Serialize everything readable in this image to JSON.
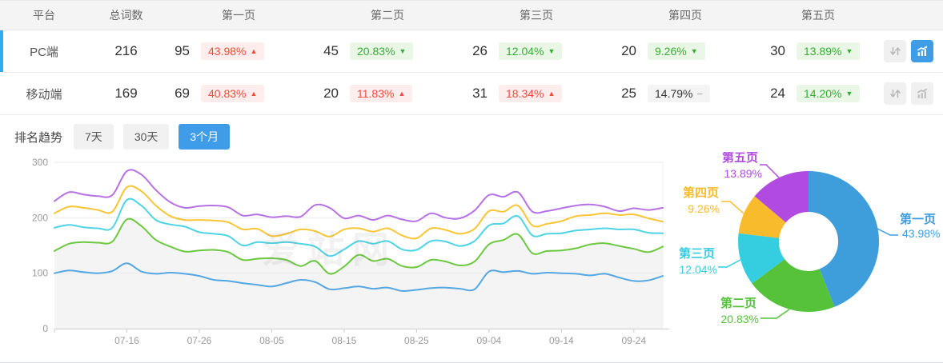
{
  "table": {
    "headers": [
      "平台",
      "总词数",
      "第一页",
      "第二页",
      "第三页",
      "第四页",
      "第五页"
    ],
    "rows": [
      {
        "platform": "PC端",
        "total": "216",
        "active": true,
        "pages": [
          {
            "count": "95",
            "pct": "43.98%",
            "dir": "up"
          },
          {
            "count": "45",
            "pct": "20.83%",
            "dir": "down"
          },
          {
            "count": "26",
            "pct": "12.04%",
            "dir": "down"
          },
          {
            "count": "20",
            "pct": "9.26%",
            "dir": "down"
          },
          {
            "count": "30",
            "pct": "13.89%",
            "dir": "down"
          }
        ],
        "trend_icon_active": true
      },
      {
        "platform": "移动端",
        "total": "169",
        "active": false,
        "pages": [
          {
            "count": "69",
            "pct": "40.83%",
            "dir": "up"
          },
          {
            "count": "20",
            "pct": "11.83%",
            "dir": "up"
          },
          {
            "count": "31",
            "pct": "18.34%",
            "dir": "up"
          },
          {
            "count": "25",
            "pct": "14.79%",
            "dir": "flat"
          },
          {
            "count": "24",
            "pct": "14.20%",
            "dir": "down"
          }
        ],
        "trend_icon_active": false
      }
    ]
  },
  "trend": {
    "label": "排名趋势",
    "tabs": [
      {
        "label": "7天",
        "active": false
      },
      {
        "label": "30天",
        "active": false
      },
      {
        "label": "3个月",
        "active": true
      }
    ]
  },
  "watermark": "爱站网",
  "colors": {
    "accent_blue": "#3e9de6",
    "row_indicator": "#33aaf0",
    "badge_up_text": "#f0483b",
    "badge_down_text": "#34ad34",
    "axis_text": "#999999"
  },
  "chart_data": [
    {
      "type": "line",
      "title": "排名趋势 (3个月)",
      "ylabel": "",
      "xlabel": "",
      "ylim": [
        0,
        300
      ],
      "y_ticks": [
        0,
        100,
        200,
        300
      ],
      "grid": true,
      "legend_position": "none",
      "x_tick_labels": [
        "07-16",
        "07-26",
        "08-05",
        "08-15",
        "08-25",
        "09-04",
        "09-14",
        "09-24"
      ],
      "x_tick_indices": [
        5,
        10,
        15,
        20,
        25,
        30,
        35,
        40
      ],
      "n_points": 43,
      "area_fill_series": "第二页",
      "series": [
        {
          "name": "第一页",
          "color": "#54a7e2",
          "values": [
            100,
            105,
            102,
            100,
            104,
            118,
            103,
            99,
            101,
            99,
            95,
            88,
            86,
            82,
            79,
            76,
            82,
            88,
            84,
            71,
            73,
            76,
            72,
            74,
            68,
            70,
            73,
            74,
            72,
            71,
            103,
            102,
            104,
            99,
            101,
            100,
            99,
            96,
            99,
            92,
            86,
            87,
            95
          ]
        },
        {
          "name": "第二页",
          "color": "#6bc83f",
          "values": [
            140,
            153,
            156,
            155,
            157,
            197,
            185,
            160,
            148,
            139,
            141,
            142,
            138,
            124,
            126,
            127,
            124,
            113,
            122,
            99,
            112,
            133,
            122,
            126,
            113,
            111,
            124,
            121,
            114,
            121,
            152,
            160,
            170,
            136,
            140,
            141,
            145,
            152,
            154,
            149,
            144,
            138,
            148
          ]
        },
        {
          "name": "第三页",
          "color": "#4ed4e4",
          "values": [
            182,
            187,
            183,
            181,
            182,
            232,
            222,
            196,
            188,
            184,
            174,
            171,
            167,
            150,
            156,
            154,
            156,
            153,
            148,
            131,
            143,
            158,
            153,
            158,
            143,
            142,
            158,
            157,
            149,
            158,
            186,
            190,
            203,
            168,
            171,
            172,
            177,
            179,
            181,
            179,
            179,
            173,
            172
          ]
        },
        {
          "name": "第四页",
          "color": "#f9c535",
          "values": [
            208,
            220,
            218,
            214,
            211,
            255,
            248,
            222,
            203,
            196,
            196,
            195,
            192,
            179,
            180,
            167,
            171,
            179,
            176,
            166,
            179,
            181,
            175,
            181,
            168,
            163,
            181,
            178,
            171,
            180,
            212,
            211,
            222,
            186,
            189,
            194,
            203,
            205,
            208,
            205,
            206,
            199,
            193
          ]
        },
        {
          "name": "第五页",
          "color": "#b671e4",
          "values": [
            230,
            246,
            242,
            239,
            241,
            284,
            278,
            250,
            228,
            218,
            221,
            222,
            219,
            204,
            206,
            201,
            203,
            202,
            223,
            218,
            199,
            204,
            196,
            204,
            197,
            194,
            208,
            200,
            199,
            213,
            241,
            238,
            246,
            211,
            212,
            217,
            222,
            224,
            220,
            212,
            217,
            214,
            218
          ]
        }
      ]
    },
    {
      "type": "pie",
      "title": "页面分布",
      "donut": true,
      "slices": [
        {
          "label": "第一页",
          "value": 43.98,
          "display": "43.98%",
          "color": "#3d9edb"
        },
        {
          "label": "第二页",
          "value": 20.83,
          "display": "20.83%",
          "color": "#55c23a"
        },
        {
          "label": "第三页",
          "value": 12.04,
          "display": "12.04%",
          "color": "#35cde0"
        },
        {
          "label": "第四页",
          "value": 9.26,
          "display": "9.26%",
          "color": "#f8bb2c"
        },
        {
          "label": "第五页",
          "value": 13.89,
          "display": "13.89%",
          "color": "#b04ae0"
        }
      ]
    }
  ]
}
